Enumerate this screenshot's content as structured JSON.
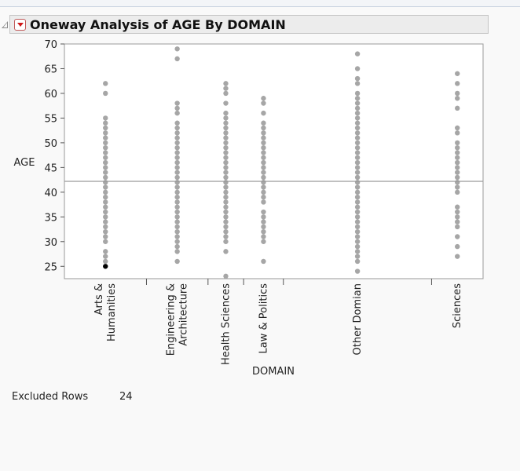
{
  "report": {
    "title": "Oneway Analysis of AGE By DOMAIN",
    "excluded_label": "Excluded Rows",
    "excluded_value": "24"
  },
  "colors": {
    "point": "#a6a6a6",
    "highlight_point": "#000000",
    "mean_line": "#9a9a9a",
    "frame": "#9a9a9a"
  },
  "chart_data": {
    "type": "scatter",
    "title": "Oneway Analysis of AGE By DOMAIN",
    "xlabel": "DOMAIN",
    "ylabel": "AGE",
    "ylim": [
      22.5,
      70
    ],
    "yticks": [
      25,
      30,
      35,
      40,
      45,
      50,
      55,
      60,
      65,
      70
    ],
    "grand_mean": 42.2,
    "categories": [
      {
        "label": "Arts &\nHumanities",
        "lines": [
          "Arts &",
          "Humanities"
        ],
        "weight": 0.196,
        "y": [
          25,
          26,
          27,
          28,
          30,
          31,
          32,
          33,
          34,
          35,
          36,
          37,
          38,
          39,
          40,
          41,
          42,
          43,
          44,
          45,
          46,
          47,
          48,
          49,
          50,
          51,
          52,
          53,
          54,
          55,
          60,
          62
        ],
        "highlight": [
          25
        ]
      },
      {
        "label": "Engineering &\nArchitecture",
        "lines": [
          "Engineering &",
          "Architecture"
        ],
        "weight": 0.147,
        "y": [
          26,
          28,
          29,
          30,
          31,
          32,
          33,
          34,
          35,
          36,
          37,
          38,
          39,
          40,
          41,
          42,
          43,
          44,
          45,
          46,
          47,
          48,
          49,
          50,
          51,
          52,
          53,
          54,
          56,
          57,
          58,
          67,
          69
        ],
        "highlight": []
      },
      {
        "label": "Health Sciences",
        "lines": [
          "Health Sciences"
        ],
        "weight": 0.085,
        "y": [
          23,
          28,
          30,
          31,
          32,
          33,
          34,
          35,
          36,
          37,
          38,
          39,
          40,
          41,
          42,
          43,
          44,
          45,
          46,
          47,
          48,
          49,
          50,
          51,
          52,
          53,
          54,
          55,
          56,
          58,
          60,
          61,
          62
        ],
        "highlight": []
      },
      {
        "label": "Law & Politics",
        "lines": [
          "Law & Politics"
        ],
        "weight": 0.095,
        "y": [
          26,
          30,
          31,
          32,
          33,
          34,
          35,
          36,
          38,
          39,
          40,
          41,
          42,
          43,
          44,
          45,
          46,
          47,
          48,
          49,
          50,
          51,
          52,
          53,
          54,
          56,
          58,
          59
        ],
        "highlight": []
      },
      {
        "label": "Other Domian",
        "lines": [
          "Other Domian"
        ],
        "weight": 0.354,
        "y": [
          24,
          26,
          27,
          28,
          29,
          30,
          31,
          32,
          33,
          34,
          35,
          36,
          37,
          38,
          39,
          40,
          41,
          42,
          43,
          44,
          45,
          46,
          47,
          48,
          49,
          50,
          51,
          52,
          53,
          54,
          55,
          56,
          57,
          58,
          59,
          60,
          62,
          63,
          65,
          68
        ],
        "highlight": []
      },
      {
        "label": "Sciences",
        "lines": [
          "Sciences"
        ],
        "weight": 0.123,
        "y": [
          27,
          29,
          31,
          33,
          34,
          35,
          36,
          37,
          40,
          41,
          42,
          43,
          44,
          45,
          46,
          47,
          48,
          49,
          50,
          52,
          53,
          57,
          59,
          60,
          62,
          64
        ],
        "highlight": []
      }
    ]
  }
}
